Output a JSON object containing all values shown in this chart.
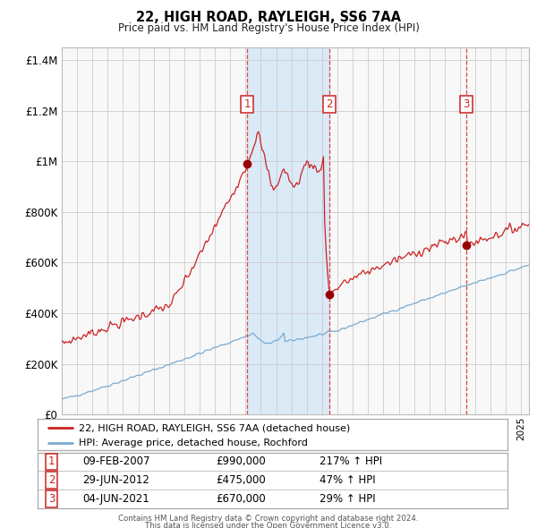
{
  "title": "22, HIGH ROAD, RAYLEIGH, SS6 7AA",
  "subtitle": "Price paid vs. HM Land Registry's House Price Index (HPI)",
  "footer1": "Contains HM Land Registry data © Crown copyright and database right 2024.",
  "footer2": "This data is licensed under the Open Government Licence v3.0.",
  "legend_line1": "22, HIGH ROAD, RAYLEIGH, SS6 7AA (detached house)",
  "legend_line2": "HPI: Average price, detached house, Rochford",
  "transactions": [
    {
      "label": "1",
      "date": "09-FEB-2007",
      "price": 990000,
      "pct": "217%",
      "dir": "↑",
      "x_year": 2007.11
    },
    {
      "label": "2",
      "date": "29-JUN-2012",
      "price": 475000,
      "pct": "47%",
      "dir": "↑",
      "x_year": 2012.49
    },
    {
      "label": "3",
      "date": "04-JUN-2021",
      "price": 670000,
      "pct": "29%",
      "dir": "↑",
      "x_year": 2021.42
    }
  ],
  "xlim": [
    1995.0,
    2025.5
  ],
  "ylim": [
    0,
    1450000
  ],
  "yticks": [
    0,
    200000,
    400000,
    600000,
    800000,
    1000000,
    1200000,
    1400000
  ],
  "ytick_labels": [
    "£0",
    "£200K",
    "£400K",
    "£600K",
    "£800K",
    "£1M",
    "£1.2M",
    "£1.4M"
  ],
  "hpi_color": "#7aaad0",
  "price_color": "#cc2222",
  "dot_color": "#990000",
  "vline_color": "#dd4444",
  "shade_color": "#daeaf7",
  "grid_color": "#cccccc",
  "bg_color": "#f8f8f8",
  "box_color": "#cc2222",
  "transaction_label_color": "#cc2222",
  "figsize": [
    6.0,
    5.9
  ],
  "dpi": 100
}
